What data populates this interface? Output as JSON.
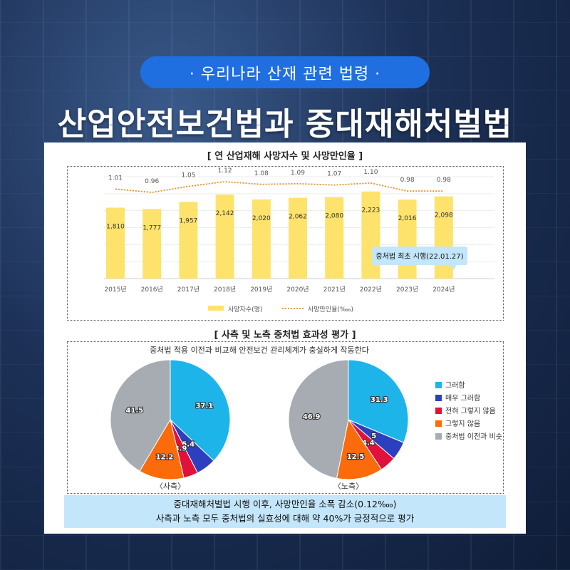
{
  "header": {
    "tag": "· 우리나라 산재 관련 법령 ·",
    "title": "산업안전보건법과 중대재해처벌법"
  },
  "colors": {
    "bar": "#fde36b",
    "line": "#f28c28",
    "c1": "#1db4ea",
    "c2": "#2b3fbf",
    "c3": "#e0123b",
    "c4": "#fb6a0b",
    "c5": "#a7acb3",
    "callout": "#c4e6fa"
  },
  "chart_data": [
    {
      "type": "bar",
      "title": "[ 연 산업재해 사망자수 및 사망만인율 ]",
      "categories": [
        "2015년",
        "2016년",
        "2017년",
        "2018년",
        "2019년",
        "2020년",
        "2021년",
        "2022년",
        "2023년",
        "2024년"
      ],
      "bar_labels": [
        "1,810",
        "1,777",
        "1,957",
        "2,142",
        "2,020",
        "2,062",
        "2,080",
        "2,223",
        "2,016",
        "2,098"
      ],
      "line_labels": [
        "1.01",
        "0.96",
        "1.05",
        "1.12",
        "1.08",
        "1.09",
        "1.07",
        "1.10",
        "0.98",
        "0.98"
      ],
      "series": [
        {
          "name": "사망자수(명)",
          "type": "bar",
          "values": [
            1810,
            1777,
            1957,
            2142,
            2020,
            2062,
            2080,
            2223,
            2016,
            2098
          ]
        },
        {
          "name": "사망만인율(‱)",
          "type": "line",
          "values": [
            1.01,
            0.96,
            1.05,
            1.12,
            1.08,
            1.09,
            1.07,
            1.1,
            0.98,
            0.98
          ]
        }
      ],
      "annotation": "중처법 최초 시행(22.01.27)",
      "grid": true,
      "legend": "bottom"
    },
    {
      "type": "pie",
      "title": "[ 사측 및 노측 중처법 효과성 평가 ]",
      "subtitle": "중처법 적용 이전과 비교해 안전보건 관리체계가 충실하게 작동한다",
      "legend": "right",
      "labels": [
        "그러함",
        "매우 그러함",
        "전혀 그렇지 않음",
        "그렇지 않음",
        "중처법 이전과 비슷"
      ],
      "pies": [
        {
          "name": "〈사측〉",
          "values": [
            37.1,
            5.4,
            3.9,
            12.2,
            41.5
          ],
          "value_labels": [
            "37.1",
            "5.4",
            "3.9",
            "12.2",
            "41.5"
          ]
        },
        {
          "name": "〈노측〉",
          "values": [
            31.3,
            5,
            4.4,
            12.5,
            46.9
          ],
          "value_labels": [
            "31.3",
            "5",
            "4.4",
            "12.5",
            "46.9"
          ]
        }
      ]
    }
  ],
  "footer": {
    "line1": "중대재해처벌법 시행 이후, 사망만인율 소폭 감소(0.12‱)",
    "line2": "사측과 노측 모두 중처법의 실효성에 대해 약 40%가 긍정적으로 평가"
  }
}
